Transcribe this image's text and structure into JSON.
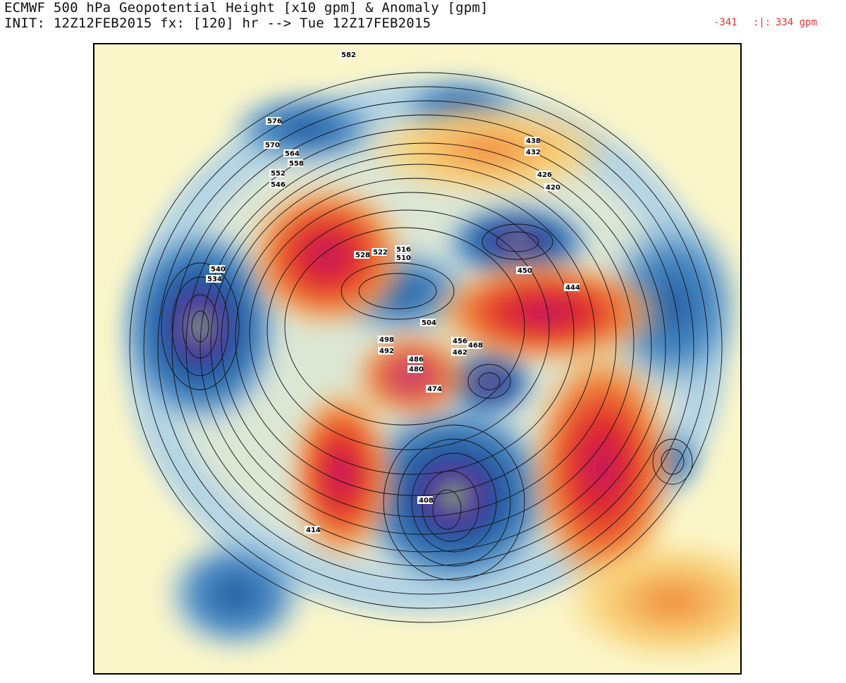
{
  "header": {
    "title_line1": "ECMWF 500 hPa Geopotential Height [x10 gpm] & Anomaly [gpm]",
    "title_line2": "INIT: 12Z12FEB2015 fx: [120] hr --> Tue 12Z17FEB2015"
  },
  "scale": {
    "min_label": "-341",
    "separator": ":|:",
    "max_label": "334 gpm"
  },
  "colors": {
    "background_field": "#fbf6c9",
    "positive_light": "#f8d27a",
    "positive_mid": "#f08a3a",
    "positive_strong": "#e02a2a",
    "positive_max": "#c2186a",
    "negative_light": "#a9cfe8",
    "negative_mid": "#4f8fc6",
    "negative_strong": "#1f5aa0",
    "negative_max": "#5a2a9a",
    "negative_extreme": "#8fd06a",
    "contour": "#111111",
    "range_text": "#e8312f"
  },
  "contour_labels": [
    "582",
    "576",
    "570",
    "564",
    "558",
    "552",
    "546",
    "540",
    "534",
    "528",
    "522",
    "516",
    "510",
    "504",
    "498",
    "492",
    "486",
    "480",
    "474",
    "468",
    "462",
    "456",
    "450",
    "444",
    "438",
    "432",
    "426",
    "420",
    "414",
    "408"
  ]
}
